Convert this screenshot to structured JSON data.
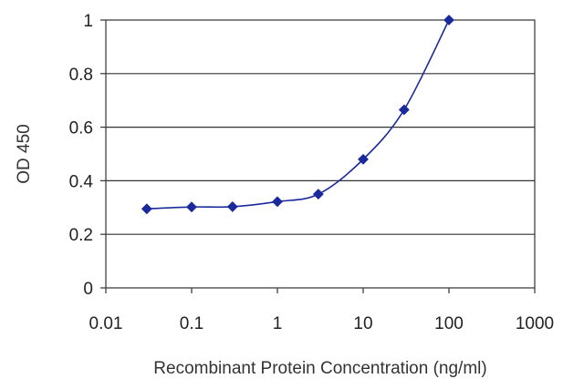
{
  "chart_data": {
    "type": "line",
    "title": "",
    "xlabel": "Recombinant Protein Concentration (ng/ml)",
    "ylabel": "OD 450",
    "x_scale": "log",
    "xlim": [
      0.01,
      1000
    ],
    "ylim": [
      0,
      1
    ],
    "x_ticks": [
      0.01,
      0.1,
      1,
      10,
      100,
      1000
    ],
    "x_tick_labels": [
      "0.01",
      "0.1",
      "1",
      "10",
      "100",
      "1000"
    ],
    "y_ticks": [
      0,
      0.2,
      0.4,
      0.6,
      0.8,
      1
    ],
    "y_tick_labels": [
      "0",
      "0.2",
      "0.4",
      "0.6",
      "0.8",
      "1"
    ],
    "grid": "horizontal",
    "legend": "none",
    "series": [
      {
        "color": "#1a2a9c",
        "x": [
          0.03,
          0.1,
          0.3,
          1,
          3,
          10,
          30,
          100
        ],
        "y": [
          0.295,
          0.302,
          0.303,
          0.322,
          0.35,
          0.48,
          0.665,
          1.0
        ]
      }
    ]
  }
}
